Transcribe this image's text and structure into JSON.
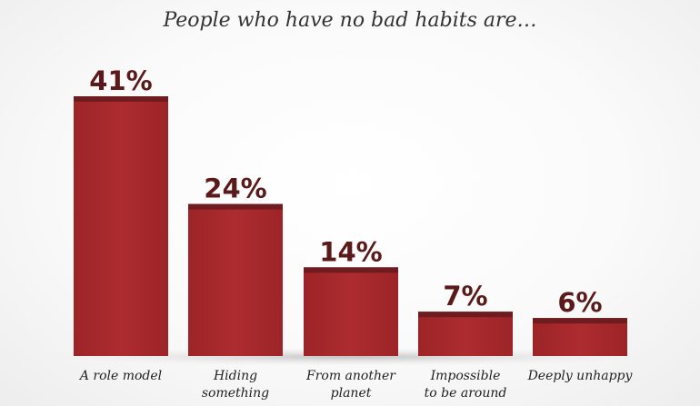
{
  "chart_data": {
    "type": "bar",
    "title": "People who have no bad habits are…",
    "categories": [
      [
        "A role model"
      ],
      [
        "Hiding",
        "something"
      ],
      [
        "From another",
        "planet"
      ],
      [
        "Impossible",
        "to be around"
      ],
      [
        "Deeply unhappy"
      ]
    ],
    "values": [
      41,
      24,
      14,
      7,
      6
    ],
    "value_labels": [
      "41%",
      "24%",
      "14%",
      "7%",
      "6%"
    ],
    "ylim": [
      0,
      41
    ],
    "xlabel": "",
    "ylabel": "",
    "colors": {
      "bar": "#a8292c",
      "bar_cap": "#6e1c1f",
      "label": "#5a1a1a"
    }
  }
}
